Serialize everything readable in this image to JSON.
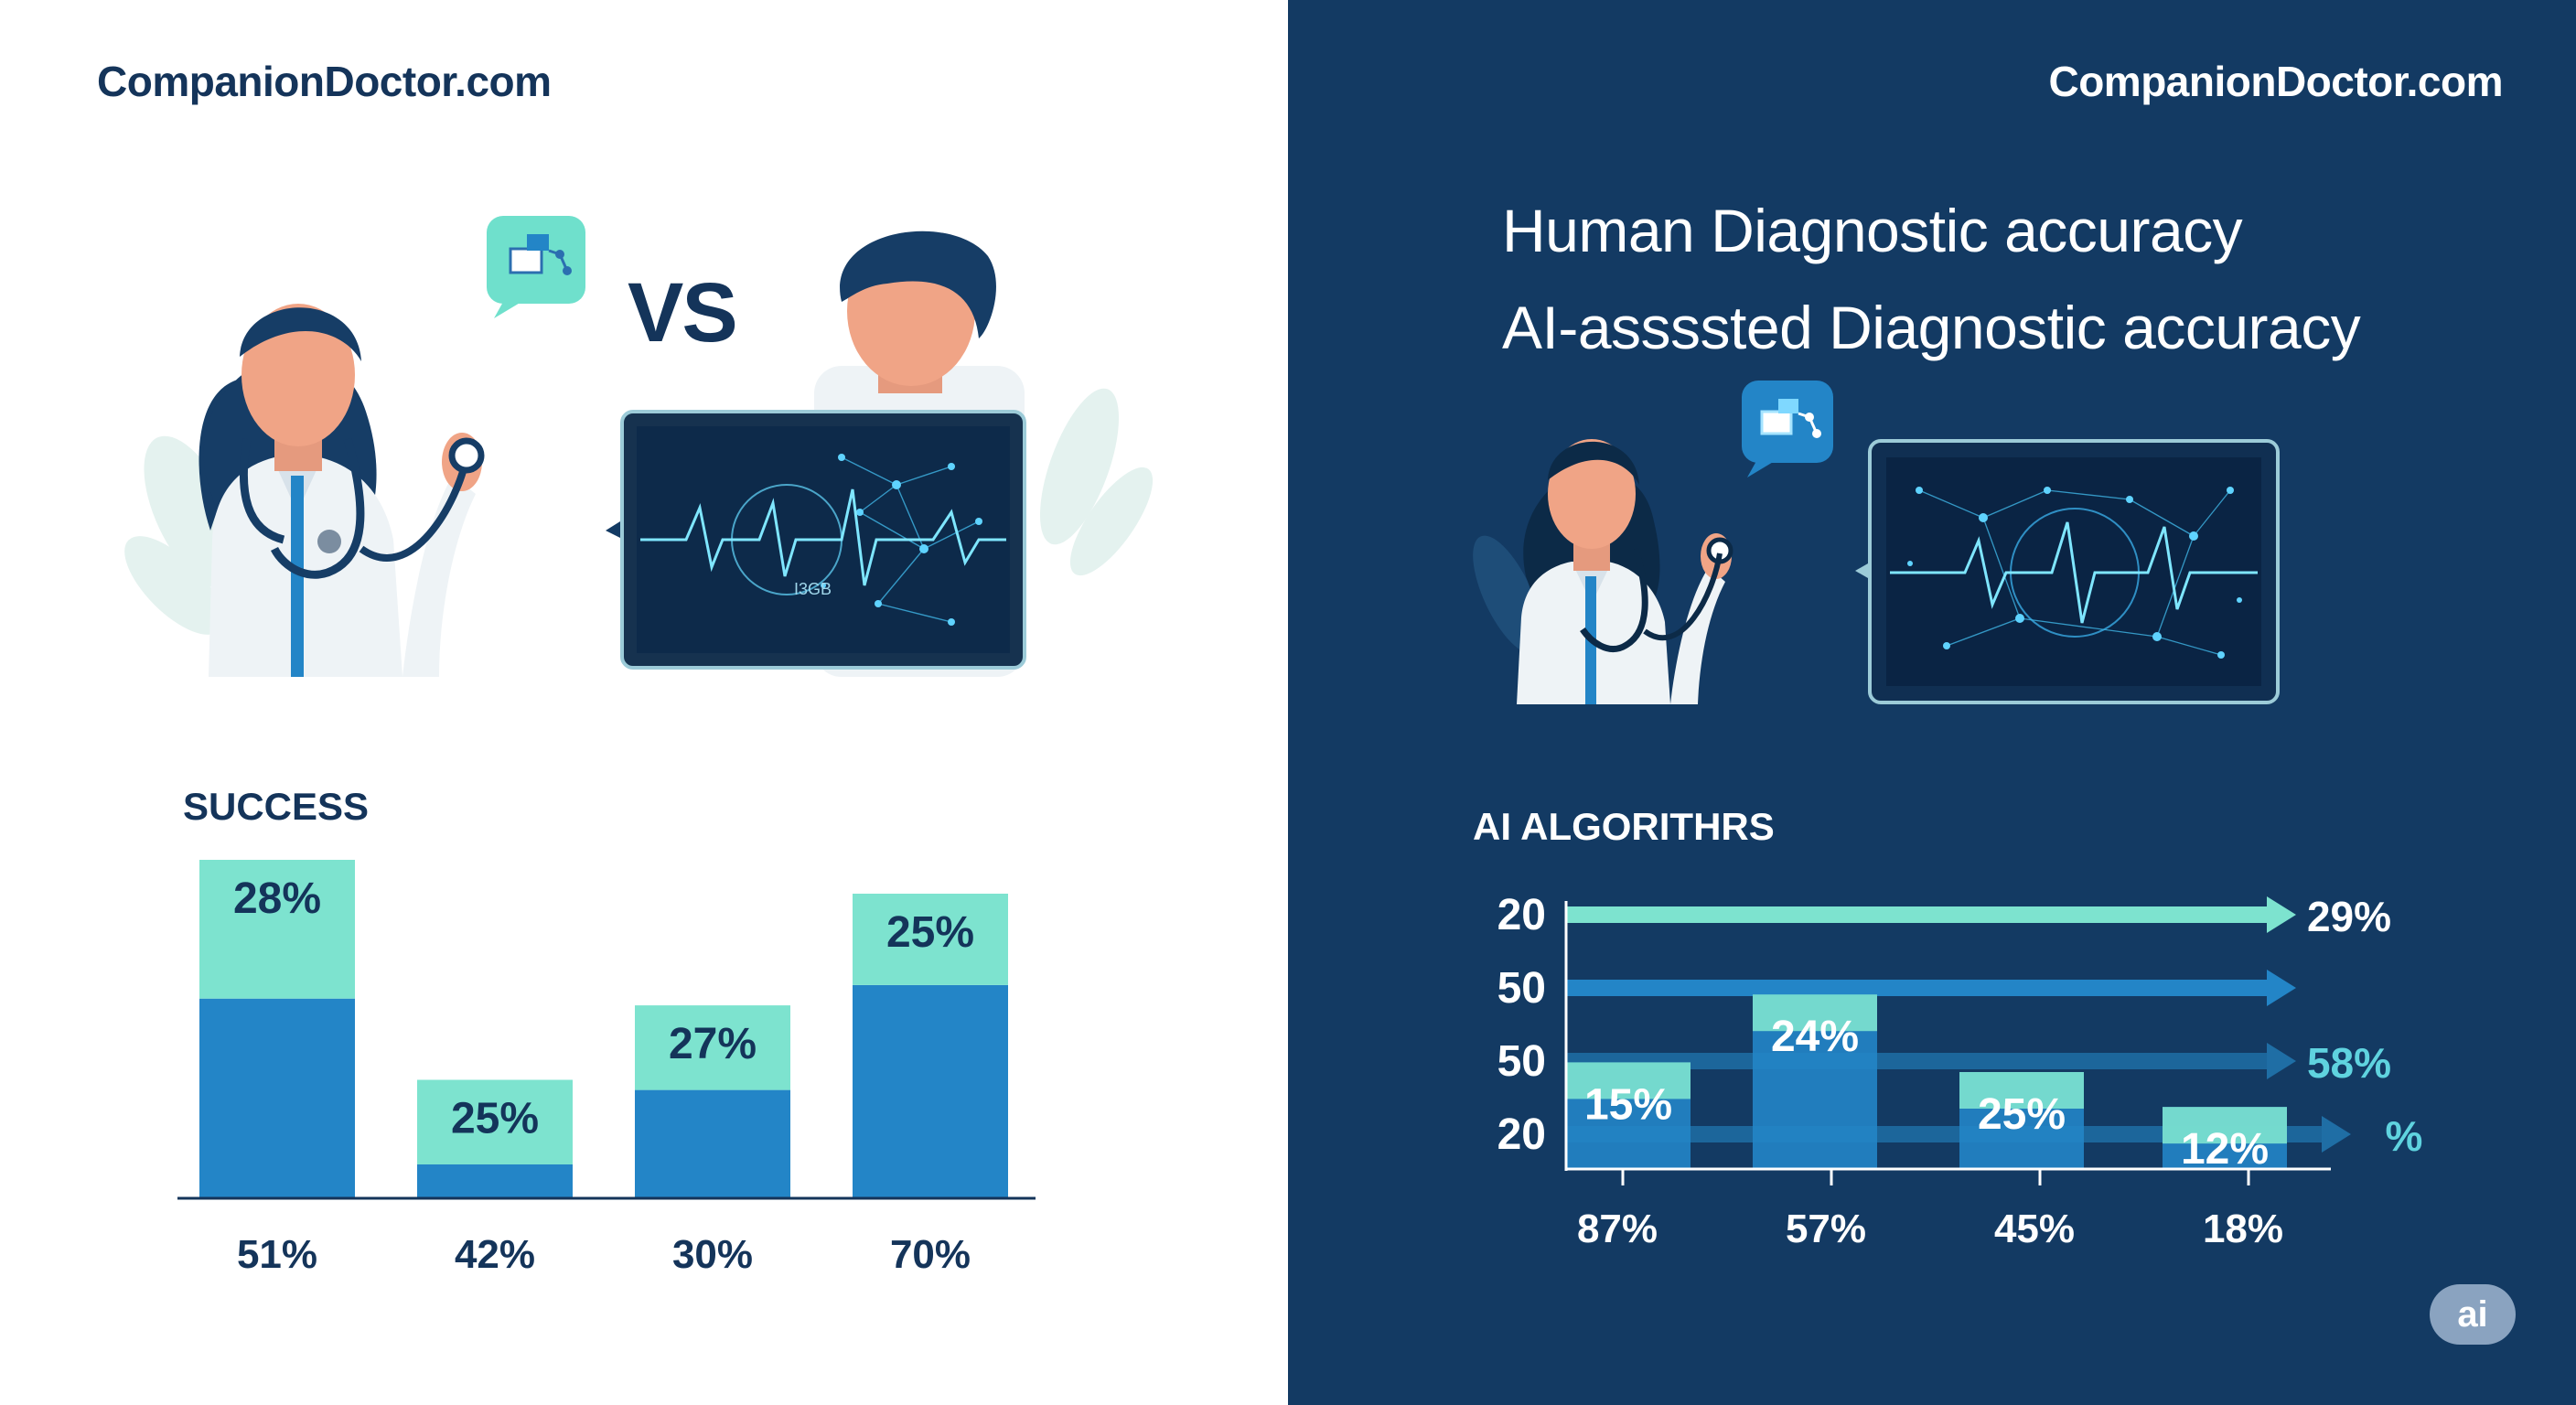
{
  "brand": {
    "left": "CompanionDoctor.com",
    "right": "CompanionDoctor.com"
  },
  "vs_label": "VS",
  "right_headings": [
    "Human Diagnostic accuracy",
    "AI-assssted Diagnostic accuracy"
  ],
  "tablet_label": "I3GB",
  "ai_badge": "ai",
  "colors": {
    "dark_navy": "#133a63",
    "teal": "#7de3cf",
    "blue": "#2385c7",
    "text_dark": "#14345a"
  },
  "icons": [
    "doctor-woman-illustration",
    "doctor-man-illustration",
    "tablet-ecg-illustration",
    "chat-bubble-network-icon"
  ],
  "chart_data": [
    {
      "type": "bar",
      "title": "SUCCESS",
      "categories": [
        "51%",
        "42%",
        "30%",
        "70%"
      ],
      "series": [
        {
          "values": [
            0.59,
            0.1,
            0.32,
            0.63
          ]
        },
        {
          "values": [
            0.41,
            0.25,
            0.25,
            0.27
          ]
        }
      ],
      "data_labels": [
        "28%",
        "25%",
        "27%",
        "25%"
      ],
      "grid": false,
      "legend": "none"
    },
    {
      "type": "bar",
      "title": "AI ALGORITHRS",
      "y_tick_labels": [
        "20",
        "50",
        "50",
        "20"
      ],
      "arrow_end_labels": [
        "29%",
        "",
        "58%",
        "%"
      ],
      "categories": [
        "87%",
        "57%",
        "45%",
        "18%"
      ],
      "values": [
        0.55,
        0.9,
        0.5,
        0.32
      ],
      "data_labels": [
        "15%",
        "24%",
        "25%",
        "12%"
      ],
      "grid": false,
      "legend": "none"
    }
  ]
}
